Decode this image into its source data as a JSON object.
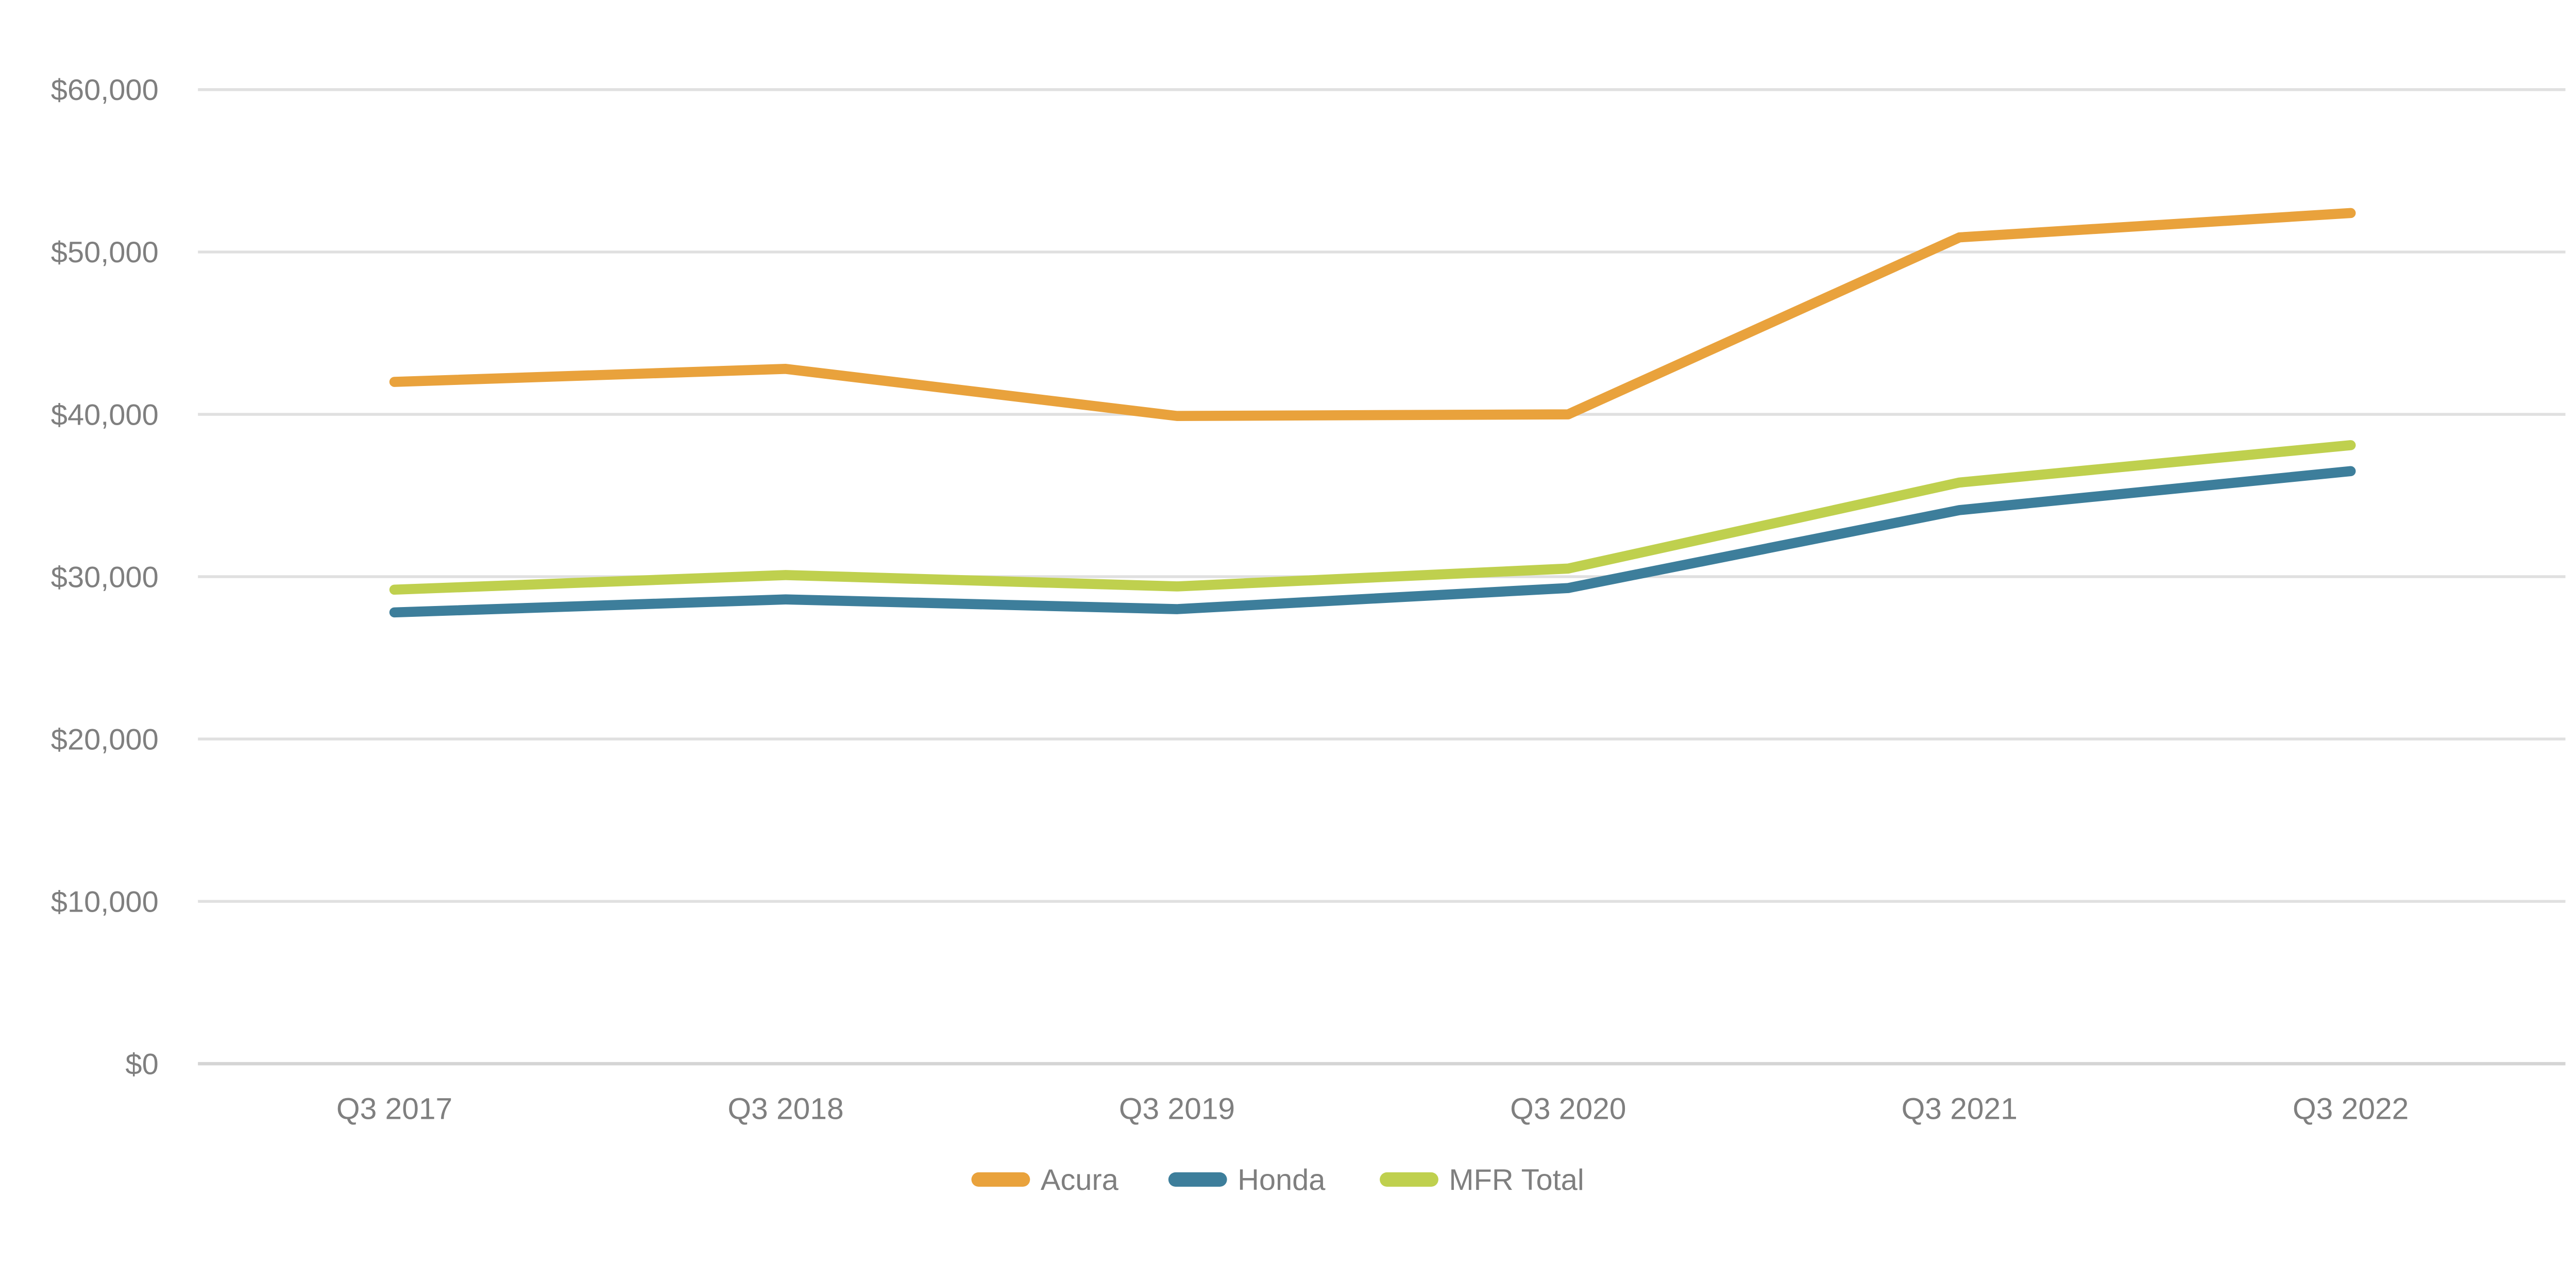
{
  "chart_data": {
    "type": "line",
    "title": "",
    "categories": [
      "Q3 2017",
      "Q3 2018",
      "Q3 2019",
      "Q3 2020",
      "Q3 2021",
      "Q3 2022"
    ],
    "series": [
      {
        "name": "Acura",
        "color": "#E9A23C",
        "values": [
          42000,
          42800,
          39900,
          40000,
          50900,
          52400
        ]
      },
      {
        "name": "Honda",
        "color": "#3D7E9B",
        "values": [
          27800,
          28600,
          28000,
          29300,
          34100,
          36500
        ]
      },
      {
        "name": "MFR Total",
        "color": "#BFD04E",
        "values": [
          29200,
          30100,
          29400,
          30500,
          35800,
          38100
        ]
      }
    ],
    "y_axis": {
      "min": 0,
      "max": 60000,
      "step": 10000,
      "tick_labels_top_to_bottom": [
        "$60,000",
        "$50,000",
        "$40,000",
        "$30,000",
        "$20,000",
        "$10,000",
        "$0"
      ]
    },
    "grid": "horizontal",
    "legend_position": "bottom-center",
    "legend_entries": [
      "Acura",
      "Honda",
      "MFR Total"
    ]
  },
  "colors": {
    "gridline": "#E0E0E0",
    "zero_line": "#D5D5D5",
    "axis_text": "#7F7F7F",
    "background": "#FFFFFF"
  }
}
